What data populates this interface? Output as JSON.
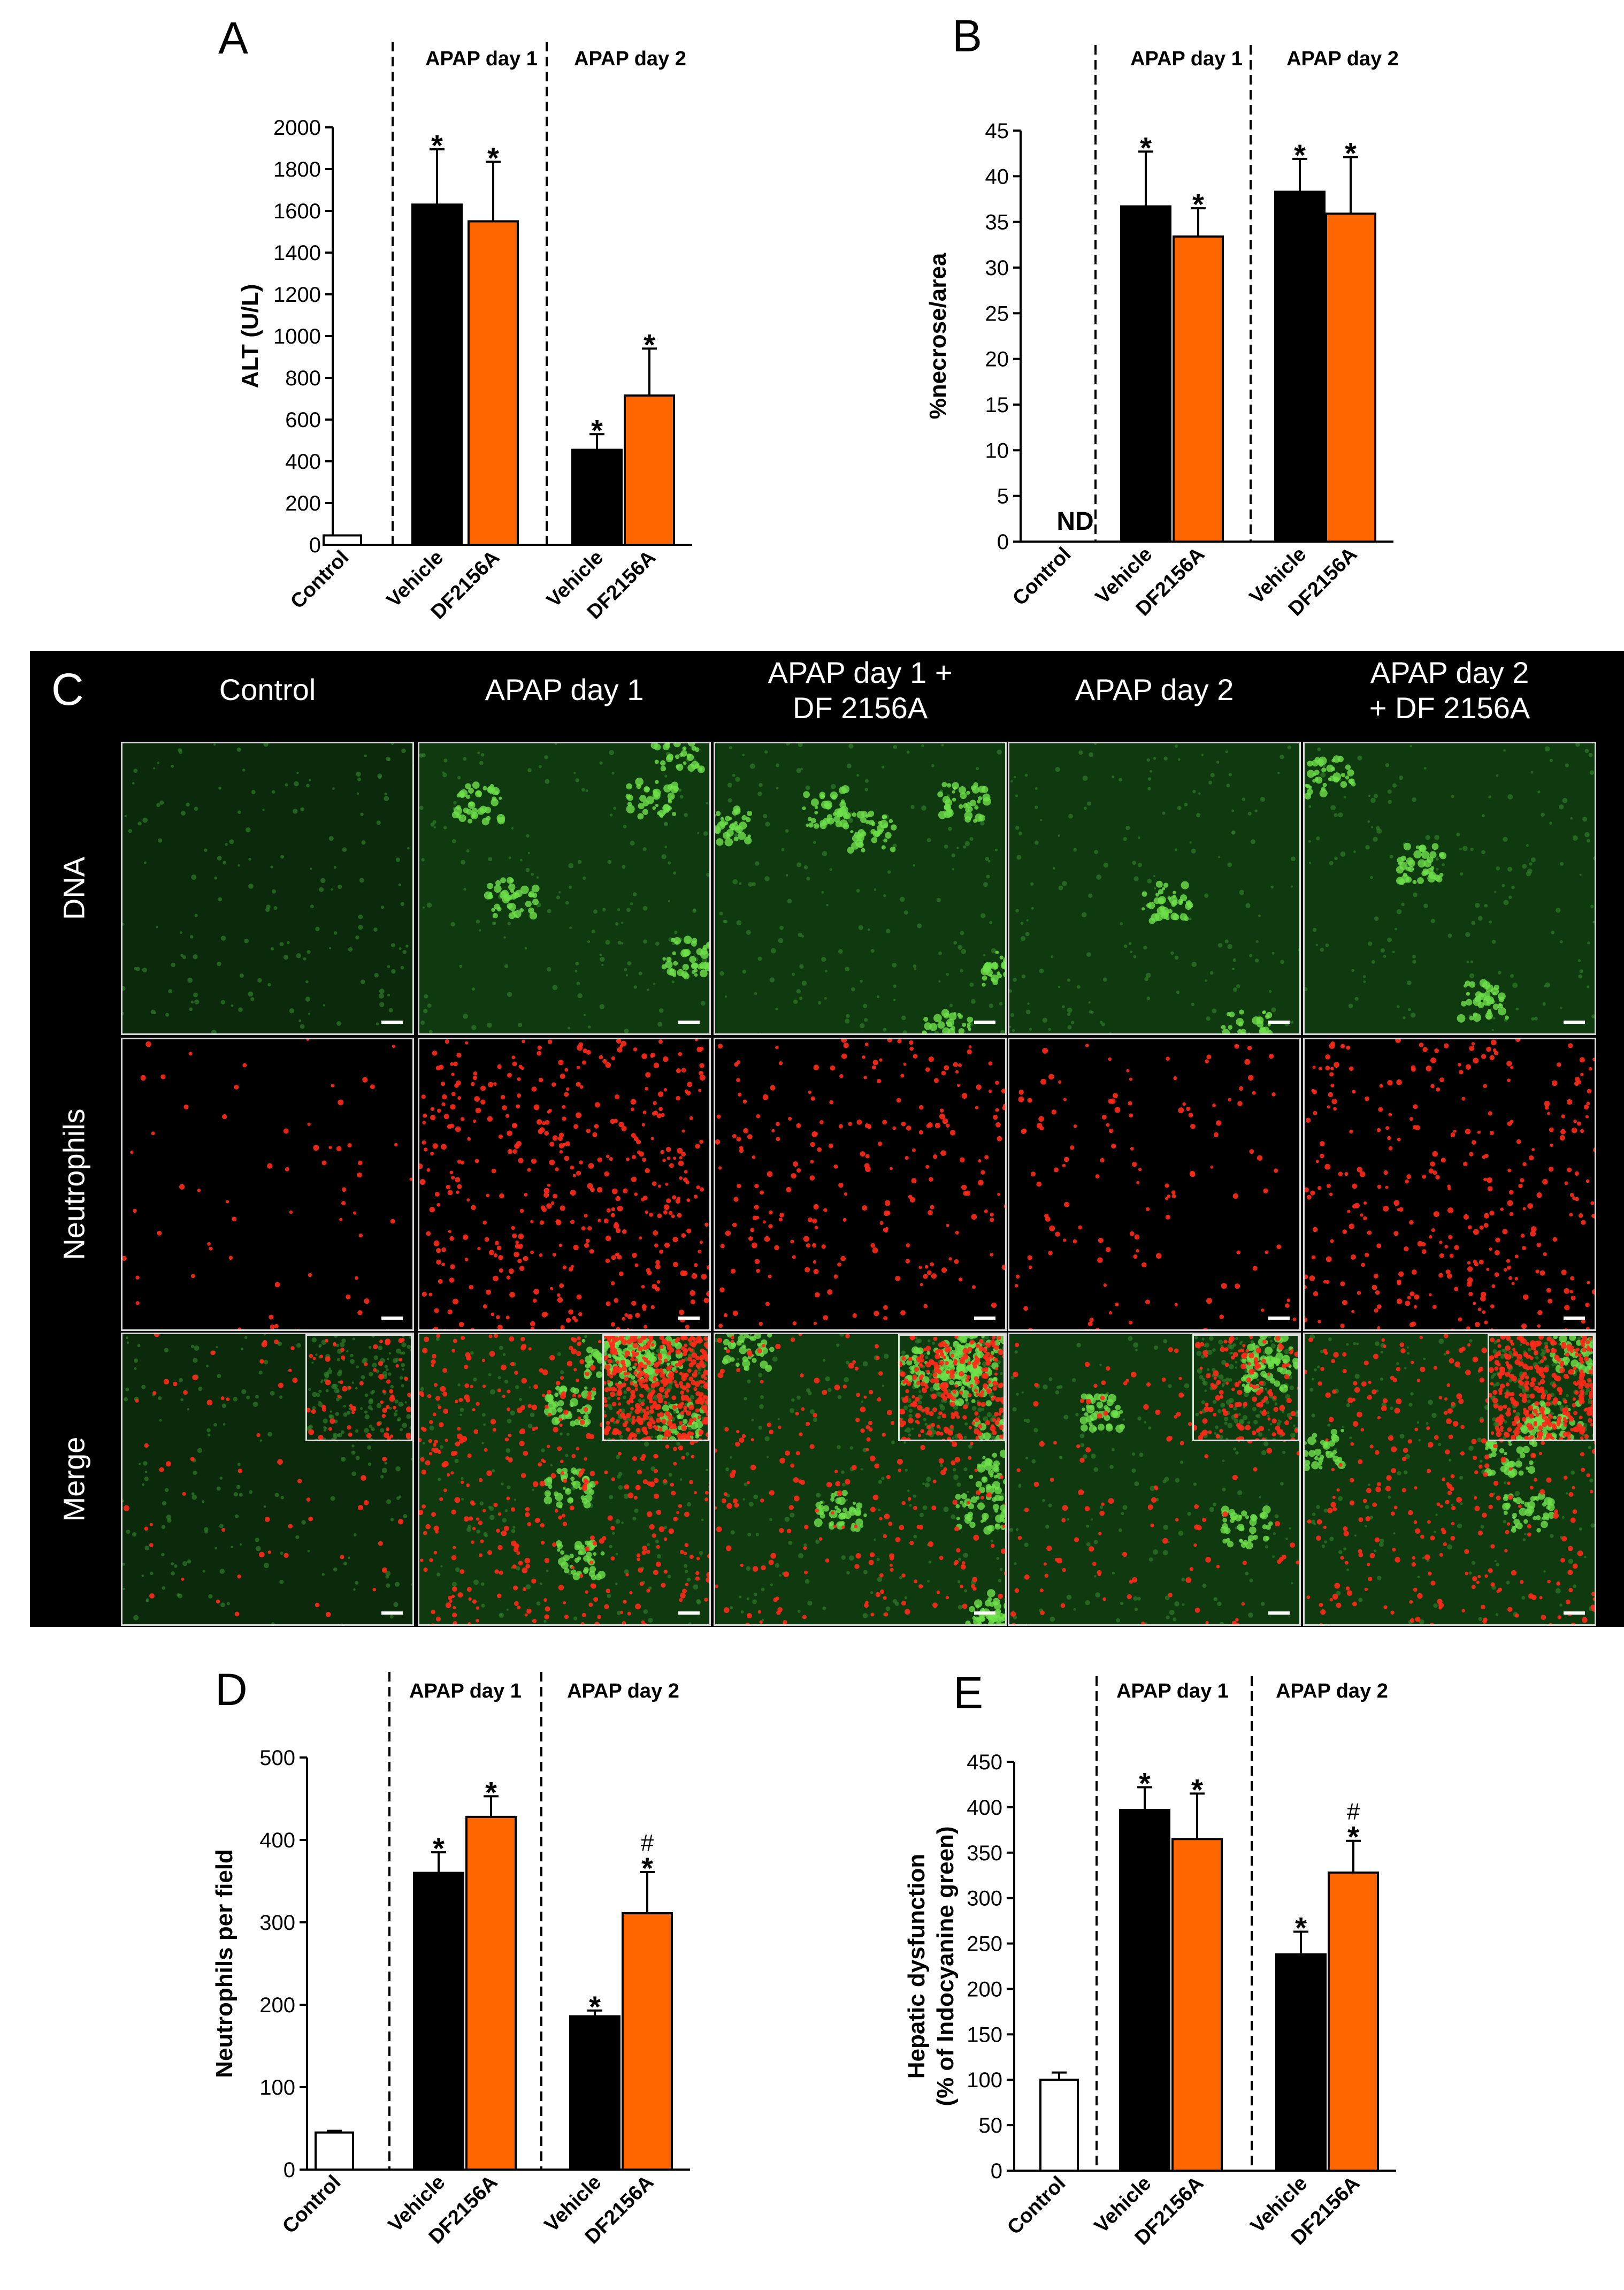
{
  "panel_letters": {
    "a": "A",
    "b": "B",
    "c": "C",
    "d": "D",
    "e": "E"
  },
  "colors": {
    "vehicle": "#000000",
    "df2156a": "#ff6600",
    "control": "#ffffff"
  },
  "chart_data": [
    {
      "id": "A",
      "type": "bar",
      "ylabel": "ALT (U/L)",
      "ylim": [
        0,
        2000
      ],
      "yticks": [
        0,
        200,
        400,
        600,
        800,
        1000,
        1200,
        1400,
        1600,
        1800,
        2000
      ],
      "groups": [
        "APAP day 1",
        "APAP day 2"
      ],
      "bars": [
        {
          "label": "Control",
          "group": "",
          "value": 45,
          "error": 0,
          "color": "#ffffff",
          "marks": ""
        },
        {
          "label": "Vehicle",
          "group": "APAP day 1",
          "value": 1630,
          "error": 265,
          "color": "#000000",
          "marks": "*"
        },
        {
          "label": "DF2156A",
          "group": "APAP day 1",
          "value": 1550,
          "error": 285,
          "color": "#ff6600",
          "marks": "*"
        },
        {
          "label": "Vehicle",
          "group": "APAP day 2",
          "value": 455,
          "error": 75,
          "color": "#000000",
          "marks": "*"
        },
        {
          "label": "DF2156A",
          "group": "APAP day 2",
          "value": 715,
          "error": 225,
          "color": "#ff6600",
          "marks": "*"
        }
      ]
    },
    {
      "id": "B",
      "type": "bar",
      "ylabel": "%necrose/area",
      "ylim": [
        0,
        45
      ],
      "yticks": [
        0,
        5,
        10,
        15,
        20,
        25,
        30,
        35,
        40,
        45
      ],
      "groups": [
        "APAP day 1",
        "APAP day 2"
      ],
      "bars": [
        {
          "label": "Control",
          "group": "",
          "value": 0,
          "error": 0,
          "color": "#ffffff",
          "marks": "",
          "note": "ND"
        },
        {
          "label": "Vehicle",
          "group": "APAP day 1",
          "value": 36.7,
          "error": 6.0,
          "color": "#000000",
          "marks": "*"
        },
        {
          "label": "DF2156A",
          "group": "APAP day 1",
          "value": 33.4,
          "error": 3.1,
          "color": "#ff6600",
          "marks": "*"
        },
        {
          "label": "Vehicle",
          "group": "APAP day 2",
          "value": 38.3,
          "error": 3.6,
          "color": "#000000",
          "marks": "*"
        },
        {
          "label": "DF2156A",
          "group": "APAP day 2",
          "value": 35.9,
          "error": 6.2,
          "color": "#ff6600",
          "marks": "*"
        }
      ]
    },
    {
      "id": "D",
      "type": "bar",
      "ylabel": "Neutrophils per field",
      "ylim": [
        0,
        500
      ],
      "yticks": [
        0,
        100,
        200,
        300,
        400,
        500
      ],
      "groups": [
        "APAP day 1",
        "APAP day 2"
      ],
      "bars": [
        {
          "label": "Control",
          "group": "",
          "value": 45,
          "error": 2,
          "color": "#ffffff",
          "marks": ""
        },
        {
          "label": "Vehicle",
          "group": "APAP day 1",
          "value": 360,
          "error": 25,
          "color": "#000000",
          "marks": "*"
        },
        {
          "label": "DF2156A",
          "group": "APAP day 1",
          "value": 428,
          "error": 25,
          "color": "#ff6600",
          "marks": "*"
        },
        {
          "label": "Vehicle",
          "group": "APAP day 2",
          "value": 186,
          "error": 7,
          "color": "#000000",
          "marks": "*"
        },
        {
          "label": "DF2156A",
          "group": "APAP day 2",
          "value": 311,
          "error": 50,
          "color": "#ff6600",
          "marks": "#*"
        }
      ]
    },
    {
      "id": "E",
      "type": "bar",
      "ylabel": "Hepatic dysfunction\n(% of Indocyanine green)",
      "ylim": [
        0,
        450
      ],
      "yticks": [
        0,
        50,
        100,
        150,
        200,
        250,
        300,
        350,
        400,
        450
      ],
      "groups": [
        "APAP day 1",
        "APAP day 2"
      ],
      "bars": [
        {
          "label": "Control",
          "group": "",
          "value": 100,
          "error": 8,
          "color": "#ffffff",
          "marks": ""
        },
        {
          "label": "Vehicle",
          "group": "APAP day 1",
          "value": 397,
          "error": 25,
          "color": "#000000",
          "marks": "*"
        },
        {
          "label": "DF2156A",
          "group": "APAP day 1",
          "value": 365,
          "error": 50,
          "color": "#ff6600",
          "marks": "*"
        },
        {
          "label": "Vehicle",
          "group": "APAP day 2",
          "value": 238,
          "error": 25,
          "color": "#000000",
          "marks": "*"
        },
        {
          "label": "DF2156A",
          "group": "APAP day 2",
          "value": 328,
          "error": 35,
          "color": "#ff6600",
          "marks": "#*"
        }
      ]
    }
  ],
  "micrographs": {
    "columns": [
      "Control",
      "APAP day 1",
      "APAP day 1 +\nDF 2156A",
      "APAP day 2",
      "APAP day 2\n+ DF 2156A"
    ],
    "rows": [
      "DNA",
      "Neutrophils",
      "Merge"
    ],
    "neutrophil_density": [
      0.15,
      1.0,
      0.55,
      0.3,
      0.75
    ],
    "dna_cluster_intensity": [
      0.0,
      0.8,
      1.0,
      0.25,
      0.5
    ]
  }
}
